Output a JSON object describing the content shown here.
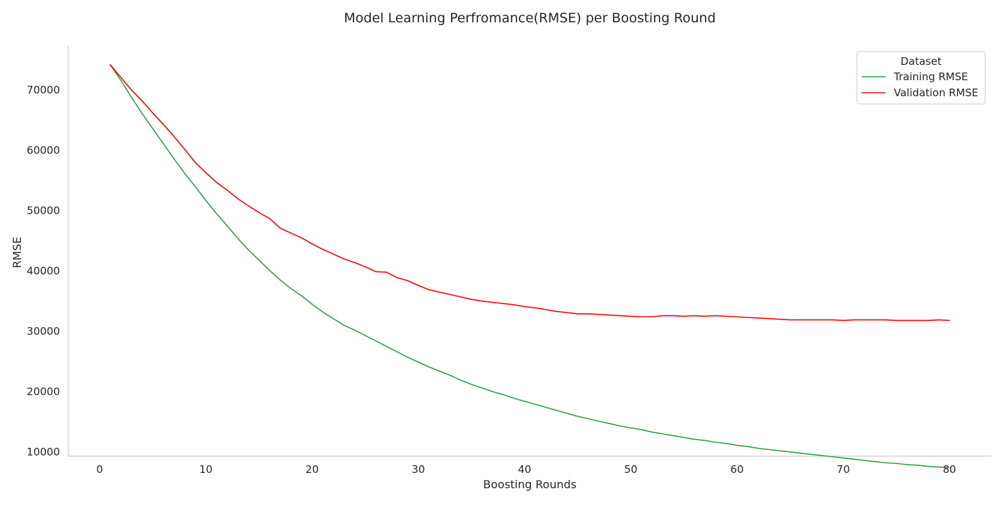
{
  "chart_data": {
    "type": "line",
    "title": "Model Learning Perfromance(RMSE) per Boosting Round",
    "xlabel": "Boosting Rounds",
    "ylabel": "RMSE",
    "xlim": [
      -2.95,
      83.95
    ],
    "ylim": [
      9300,
      77300
    ],
    "xticks": [
      0,
      10,
      20,
      30,
      40,
      50,
      60,
      70,
      80
    ],
    "yticks": [
      10000,
      20000,
      30000,
      40000,
      50000,
      60000,
      70000
    ],
    "grid": false,
    "legend": {
      "title": "Dataset",
      "placement": "top-right"
    },
    "series": [
      {
        "name": "Training RMSE",
        "color": "#2ca048",
        "x": [
          1,
          2,
          3,
          4,
          5,
          6,
          7,
          8,
          9,
          10,
          11,
          12,
          13,
          14,
          15,
          16,
          17,
          18,
          19,
          20,
          21,
          22,
          23,
          24,
          25,
          26,
          27,
          28,
          29,
          30,
          31,
          32,
          33,
          34,
          35,
          36,
          37,
          38,
          39,
          40,
          41,
          42,
          43,
          44,
          45,
          46,
          47,
          48,
          49,
          50,
          51,
          52,
          53,
          54,
          55,
          56,
          57,
          58,
          59,
          60,
          61,
          62,
          63,
          64,
          65,
          66,
          67,
          68,
          69,
          70,
          71,
          72,
          73,
          74,
          75,
          76,
          77,
          78,
          79,
          80
        ],
        "values": [
          74200,
          71600,
          68800,
          66100,
          63600,
          61100,
          58600,
          56200,
          54000,
          51700,
          49500,
          47500,
          45400,
          43500,
          41800,
          40100,
          38500,
          37100,
          35900,
          34500,
          33200,
          32100,
          31000,
          30200,
          29300,
          28400,
          27500,
          26600,
          25700,
          24900,
          24100,
          23400,
          22700,
          21900,
          21200,
          20600,
          20000,
          19500,
          18900,
          18400,
          17900,
          17400,
          16900,
          16400,
          15900,
          15500,
          15100,
          14700,
          14300,
          14000,
          13700,
          13300,
          13000,
          12700,
          12400,
          12100,
          11900,
          11600,
          11400,
          11100,
          10900,
          10600,
          10400,
          10200,
          10000,
          9800,
          9600,
          9400,
          9200,
          9000,
          8800,
          8600,
          8400,
          8200,
          8100,
          7900,
          7800,
          7600,
          7500,
          7400
        ]
      },
      {
        "name": "Validation RMSE",
        "color": "#ff0000",
        "x": [
          1,
          2,
          3,
          4,
          5,
          6,
          7,
          8,
          9,
          10,
          11,
          12,
          13,
          14,
          15,
          16,
          17,
          18,
          19,
          20,
          21,
          22,
          23,
          24,
          25,
          26,
          27,
          28,
          29,
          30,
          31,
          32,
          33,
          34,
          35,
          36,
          37,
          38,
          39,
          40,
          41,
          42,
          43,
          44,
          45,
          46,
          47,
          48,
          49,
          50,
          51,
          52,
          53,
          54,
          55,
          56,
          57,
          58,
          59,
          60,
          61,
          62,
          63,
          64,
          65,
          66,
          67,
          68,
          69,
          70,
          71,
          72,
          73,
          74,
          75,
          76,
          77,
          78,
          79,
          80
        ],
        "values": [
          74200,
          72100,
          70000,
          68200,
          66200,
          64300,
          62300,
          60200,
          58000,
          56300,
          54700,
          53400,
          52000,
          50800,
          49700,
          48700,
          47100,
          46300,
          45500,
          44500,
          43600,
          42800,
          42000,
          41400,
          40700,
          39900,
          39800,
          38900,
          38400,
          37600,
          36900,
          36500,
          36100,
          35700,
          35300,
          35000,
          34800,
          34600,
          34400,
          34100,
          33900,
          33600,
          33300,
          33100,
          32900,
          32900,
          32800,
          32700,
          32600,
          32500,
          32400,
          32400,
          32600,
          32600,
          32500,
          32600,
          32500,
          32600,
          32500,
          32400,
          32300,
          32200,
          32100,
          32000,
          31900,
          31900,
          31900,
          31900,
          31900,
          31800,
          31900,
          31900,
          31900,
          31900,
          31800,
          31800,
          31800,
          31800,
          31900,
          31800
        ]
      }
    ]
  }
}
